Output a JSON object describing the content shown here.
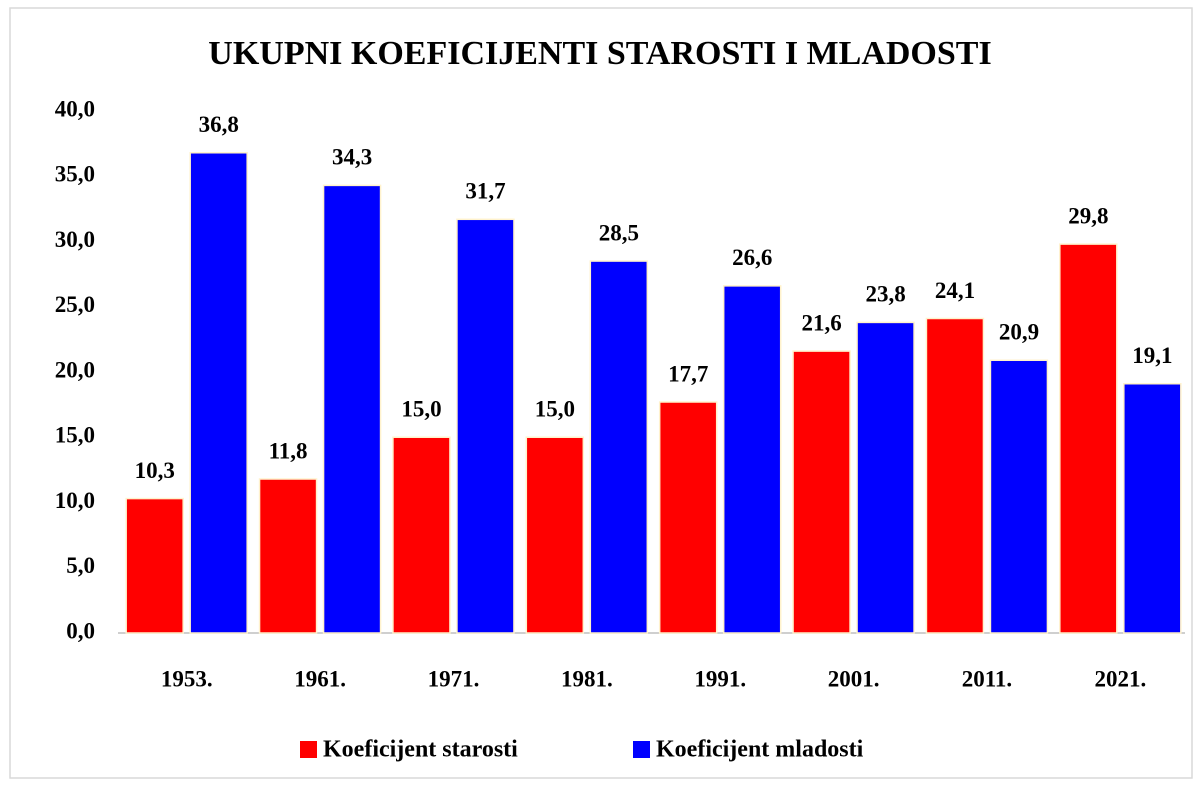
{
  "chart_data": {
    "type": "bar",
    "title": "UKUPNI KOEFICIJENTI STAROSTI I MLADOSTI",
    "categories": [
      "1953.",
      "1961.",
      "1971.",
      "1981.",
      "1991.",
      "2001.",
      "2011.",
      "2021."
    ],
    "series": [
      {
        "name": "Koeficijent starosti",
        "color": "#ff0000",
        "values": [
          10.3,
          11.8,
          15.0,
          15.0,
          17.7,
          21.6,
          24.1,
          29.8
        ],
        "value_labels": [
          "10,3",
          "11,8",
          "15,0",
          "15,0",
          "17,7",
          "21,6",
          "24,1",
          "29,8"
        ]
      },
      {
        "name": "Koeficijent mladosti",
        "color": "#0000ff",
        "values": [
          36.8,
          34.3,
          31.7,
          28.5,
          26.6,
          23.8,
          20.9,
          19.1
        ],
        "value_labels": [
          "36,8",
          "34,3",
          "31,7",
          "28,5",
          "26,6",
          "23,8",
          "20,9",
          "19,1"
        ]
      }
    ],
    "ylim": [
      0,
      40
    ],
    "yticks": [
      {
        "value": 0,
        "label": "0,0"
      },
      {
        "value": 5,
        "label": "5,0"
      },
      {
        "value": 10,
        "label": "10,0"
      },
      {
        "value": 15,
        "label": "15,0"
      },
      {
        "value": 20,
        "label": "20,0"
      },
      {
        "value": 25,
        "label": "25,0"
      },
      {
        "value": 30,
        "label": "30,0"
      },
      {
        "value": 35,
        "label": "35,0"
      },
      {
        "value": 40,
        "label": "40,0"
      }
    ],
    "grid": false,
    "legend": "bottom"
  }
}
